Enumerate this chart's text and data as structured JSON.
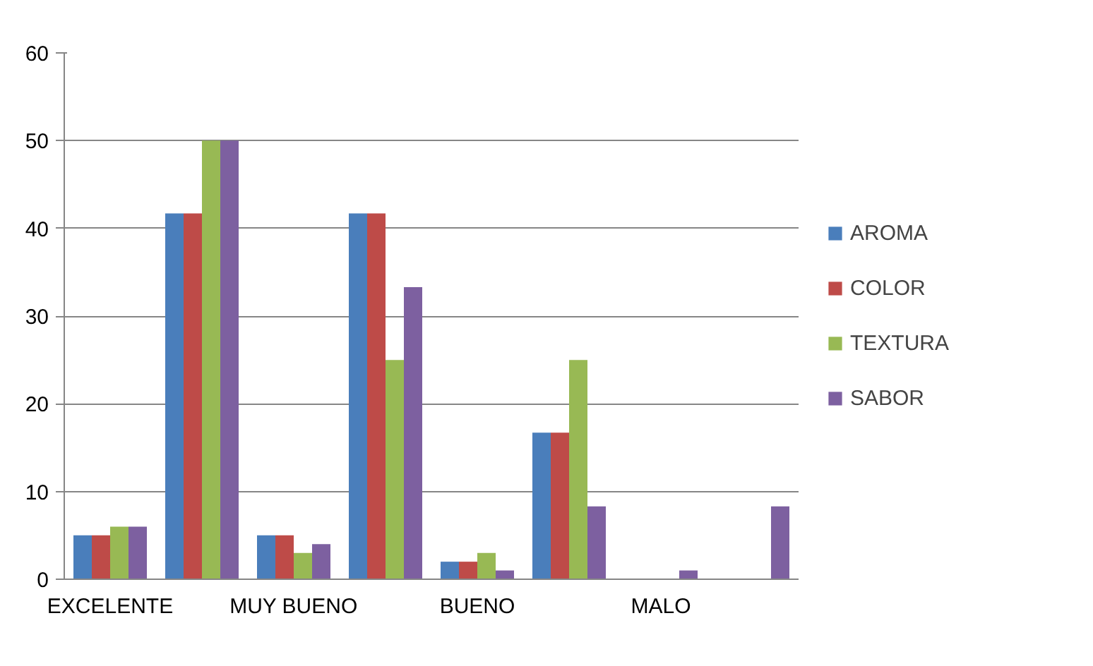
{
  "chart_data": {
    "type": "bar",
    "categories": [
      "EXCELENTE",
      null,
      "MUY BUENO",
      null,
      "BUENO",
      null,
      "MALO",
      null
    ],
    "series": [
      {
        "name": "AROMA",
        "color": "#4a7ebb",
        "values": [
          5,
          41.7,
          5,
          41.7,
          2,
          16.7,
          0,
          0
        ]
      },
      {
        "name": "COLOR",
        "color": "#be4b48",
        "values": [
          5,
          41.7,
          5,
          41.7,
          2,
          16.7,
          0,
          0
        ]
      },
      {
        "name": "TEXTURA",
        "color": "#98b954",
        "values": [
          6,
          50,
          3,
          25,
          3,
          25,
          0,
          0
        ]
      },
      {
        "name": "SABOR",
        "color": "#7d60a0",
        "values": [
          6,
          50,
          4,
          33.3,
          1,
          8.3,
          1,
          8.3
        ]
      }
    ],
    "ylim": [
      0,
      60
    ],
    "yticks": [
      0,
      10,
      20,
      30,
      40,
      50,
      60
    ],
    "grid": "y",
    "legend": "right"
  }
}
